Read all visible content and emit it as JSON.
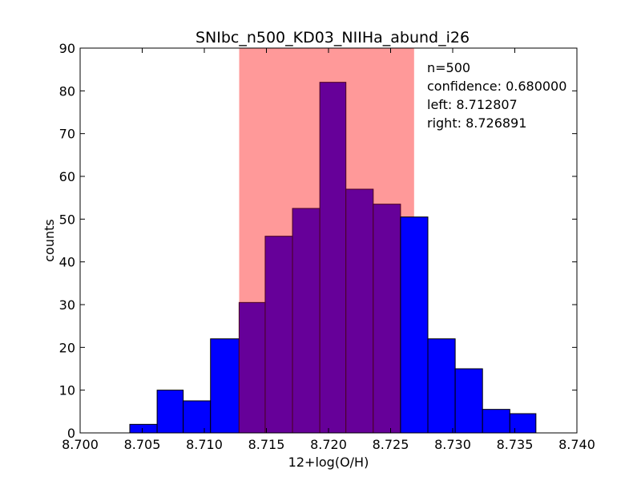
{
  "chart_data": {
    "type": "bar",
    "title": "SNIbc_n500_KD03_NIIHa_abund_i26",
    "xlabel": "12+log(O/H)",
    "ylabel": "counts",
    "xlim": [
      8.7,
      8.74
    ],
    "ylim": [
      0,
      90
    ],
    "xticks": [
      "8.700",
      "8.705",
      "8.710",
      "8.715",
      "8.720",
      "8.725",
      "8.730",
      "8.735",
      "8.740"
    ],
    "yticks": [
      "0",
      "10",
      "20",
      "30",
      "40",
      "50",
      "60",
      "70",
      "80",
      "90"
    ],
    "grid": false,
    "bin_edges": [
      8.704,
      8.7062,
      8.7083,
      8.7105,
      8.7128,
      8.7149,
      8.7171,
      8.7193,
      8.7214,
      8.7236,
      8.7258,
      8.728,
      8.7302,
      8.7324,
      8.7346,
      8.7367
    ],
    "counts": [
      2,
      10,
      7.5,
      22,
      30.5,
      46,
      52.5,
      82,
      57,
      53.5,
      50.5,
      22,
      15,
      5.5,
      4.5
    ],
    "confidence_band": {
      "left": 8.712807,
      "right": 8.726891,
      "color": "#ff9999"
    },
    "colors": {
      "bar": "#0000ff",
      "bar_in_band": "#660099",
      "bar_edge": "#000000"
    },
    "annotation": {
      "lines": [
        "n=500",
        "confidence: 0.680000",
        "left: 8.712807",
        "right: 8.726891"
      ],
      "placement": "top-right"
    }
  }
}
